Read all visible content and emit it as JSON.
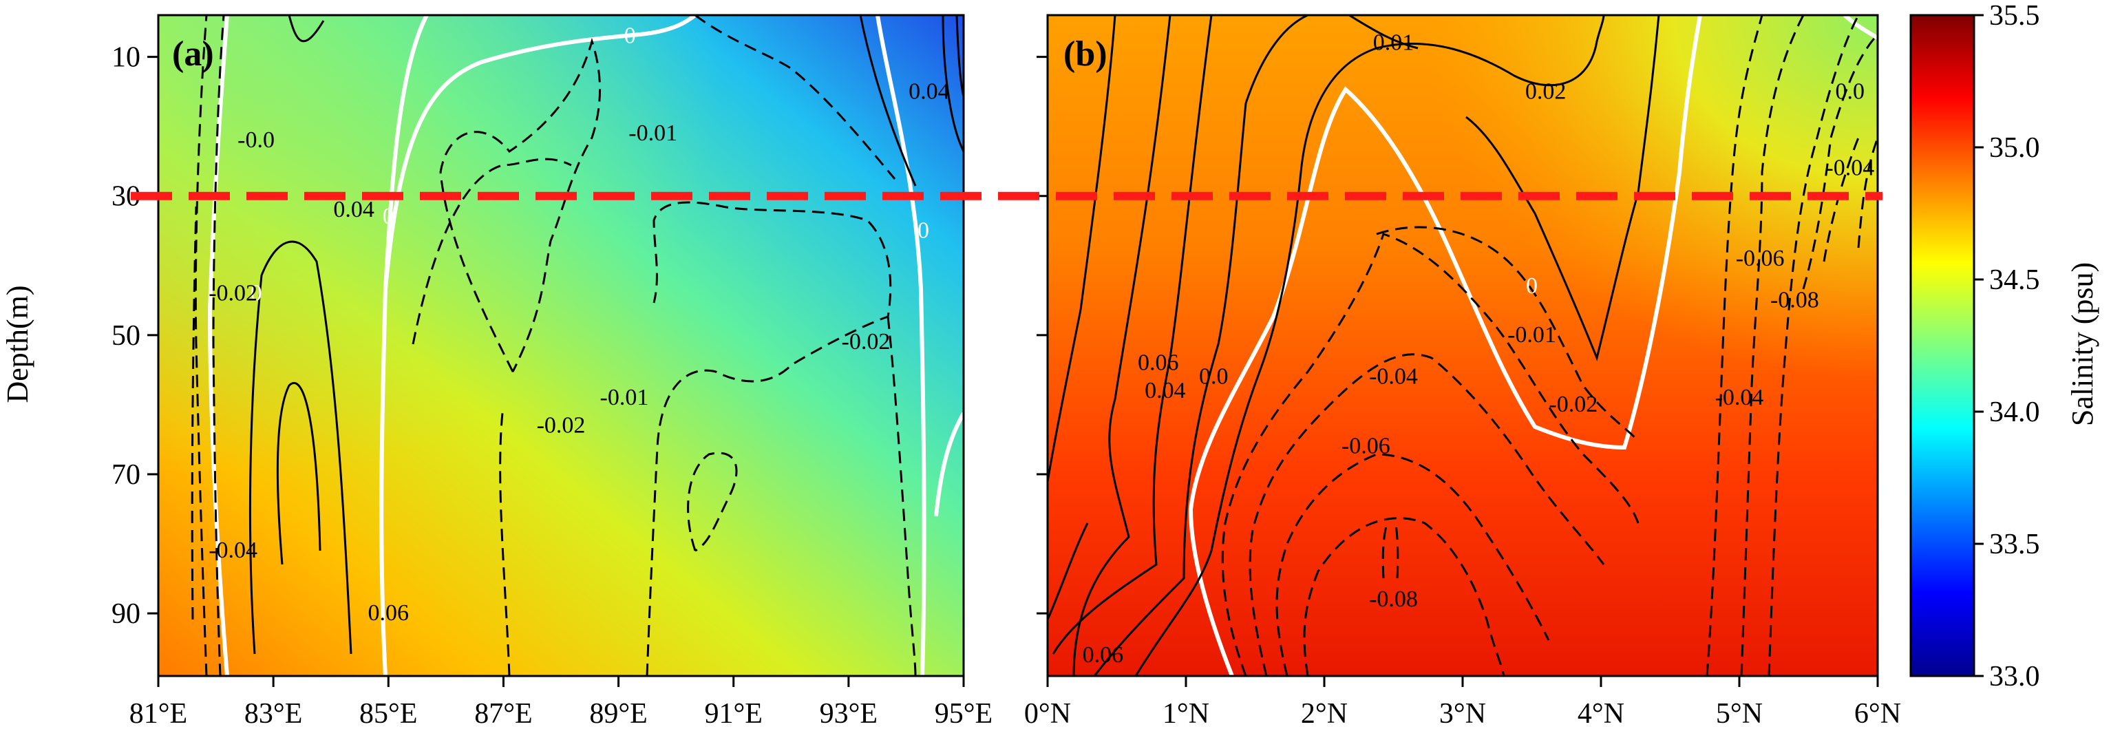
{
  "chart_data": [
    {
      "type": "contour",
      "panel_label": "(a)",
      "xlabel": "",
      "ylabel": "Depth(m)",
      "x_ticks": [
        "81°E",
        "83°E",
        "85°E",
        "87°E",
        "89°E",
        "91°E",
        "93°E",
        "95°E"
      ],
      "x_tick_values": [
        81,
        83,
        85,
        87,
        89,
        91,
        93,
        95
      ],
      "xlim": [
        81,
        95
      ],
      "y_ticks": [
        "10",
        "30",
        "50",
        "70",
        "90"
      ],
      "y_tick_values": [
        10,
        30,
        50,
        70,
        90
      ],
      "ylim": [
        99,
        4
      ],
      "y_inverted": true,
      "reference_line_depth": 30,
      "contour_labels": [
        {
          "text": "0",
          "x": 89.2,
          "y": 8,
          "white": true
        },
        {
          "text": "0",
          "x": 85.0,
          "y": 34,
          "white": true
        },
        {
          "text": "0",
          "x": 82.7,
          "y": 45,
          "white": true
        },
        {
          "text": "0",
          "x": 94.3,
          "y": 36,
          "white": true
        },
        {
          "text": "-0.01",
          "x": 89.6,
          "y": 22
        },
        {
          "text": "-0.01",
          "x": 89.1,
          "y": 60
        },
        {
          "text": "-0.02",
          "x": 88.0,
          "y": 64
        },
        {
          "text": "-0.02",
          "x": 93.3,
          "y": 52
        },
        {
          "text": "-0.02",
          "x": 82.3,
          "y": 45
        },
        {
          "text": "-0.04",
          "x": 82.3,
          "y": 82
        },
        {
          "text": "0.04",
          "x": 84.4,
          "y": 33
        },
        {
          "text": "0.04",
          "x": 94.4,
          "y": 16
        },
        {
          "text": "0.06",
          "x": 85.0,
          "y": 91
        },
        {
          "text": "-0.0",
          "x": 82.7,
          "y": 23
        }
      ]
    },
    {
      "type": "contour",
      "panel_label": "(b)",
      "xlabel": "",
      "ylabel": "",
      "x_ticks": [
        "0°N",
        "1°N",
        "2°N",
        "3°N",
        "4°N",
        "5°N",
        "6°N"
      ],
      "x_tick_values": [
        0,
        1,
        2,
        3,
        4,
        5,
        6
      ],
      "xlim": [
        0,
        6
      ],
      "ylim": [
        99,
        4
      ],
      "y_inverted": true,
      "reference_line_depth": 30,
      "contour_labels": [
        {
          "text": "0.01",
          "x": 2.5,
          "y": 9
        },
        {
          "text": "0.02",
          "x": 3.6,
          "y": 16
        },
        {
          "text": "0.0",
          "x": 5.8,
          "y": 16
        },
        {
          "text": "-0.04",
          "x": 5.8,
          "y": 27
        },
        {
          "text": "0.06",
          "x": 0.8,
          "y": 55
        },
        {
          "text": "0.04",
          "x": 0.85,
          "y": 59
        },
        {
          "text": "0.0",
          "x": 1.2,
          "y": 57
        },
        {
          "text": "0",
          "x": 3.5,
          "y": 44,
          "white": true
        },
        {
          "text": "-0.01",
          "x": 3.5,
          "y": 51
        },
        {
          "text": "-0.02",
          "x": 3.8,
          "y": 61
        },
        {
          "text": "-0.04",
          "x": 2.5,
          "y": 57
        },
        {
          "text": "-0.06",
          "x": 2.3,
          "y": 67
        },
        {
          "text": "-0.08",
          "x": 2.5,
          "y": 89
        },
        {
          "text": "0.06",
          "x": 0.4,
          "y": 97
        },
        {
          "text": "-0.06",
          "x": 5.15,
          "y": 40
        },
        {
          "text": "-0.08",
          "x": 5.4,
          "y": 46
        },
        {
          "text": "-0.04",
          "x": 5.0,
          "y": 60
        }
      ]
    }
  ],
  "colorbar": {
    "label": "Salinity (psu)",
    "ticks": [
      "33.0",
      "33.5",
      "34.0",
      "34.5",
      "35.0",
      "35.5"
    ],
    "tick_values": [
      33.0,
      33.5,
      34.0,
      34.5,
      35.0,
      35.5
    ],
    "range": [
      33.0,
      35.5
    ],
    "colormap": "jet"
  },
  "colors": {
    "reference_line": "#ff1a1a",
    "zero_contour": "#ffffff",
    "contour": "#000000"
  }
}
